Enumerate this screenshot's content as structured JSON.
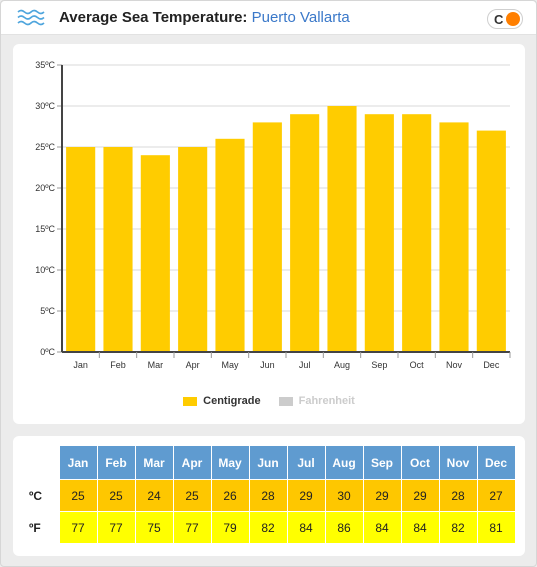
{
  "header": {
    "title": "Average Sea Temperature:",
    "location": "Puerto Vallarta",
    "toggle_label": "C"
  },
  "legend": {
    "centigrade": "Centigrade",
    "fahrenheit": "Fahrenheit"
  },
  "colors": {
    "bar": "#ffcc00",
    "legend_inactive": "#cccccc",
    "header_cell": "#5f9bd0",
    "celsius_row": "#fec700",
    "fahrenheit_row": "#ffff00",
    "toggle_knob": "#ff7f00"
  },
  "chart_data": {
    "type": "bar",
    "categories": [
      "Jan",
      "Feb",
      "Mar",
      "Apr",
      "May",
      "Jun",
      "Jul",
      "Aug",
      "Sep",
      "Oct",
      "Nov",
      "Dec"
    ],
    "series": [
      {
        "name": "Centigrade",
        "values": [
          25,
          25,
          24,
          25,
          26,
          28,
          29,
          30,
          29,
          29,
          28,
          27
        ]
      }
    ],
    "ylim": [
      0,
      35
    ],
    "yticks": [
      "0ºC",
      "5ºC",
      "10ºC",
      "15ºC",
      "20ºC",
      "25ºC",
      "30ºC",
      "35ºC"
    ],
    "grid": true
  },
  "table": {
    "celsius_label": "ºC",
    "fahrenheit_label": "ºF",
    "months": [
      "Jan",
      "Feb",
      "Mar",
      "Apr",
      "May",
      "Jun",
      "Jul",
      "Aug",
      "Sep",
      "Oct",
      "Nov",
      "Dec"
    ],
    "celsius": [
      "25",
      "25",
      "24",
      "25",
      "26",
      "28",
      "29",
      "30",
      "29",
      "29",
      "28",
      "27"
    ],
    "fahrenheit": [
      "77",
      "77",
      "75",
      "77",
      "79",
      "82",
      "84",
      "86",
      "84",
      "84",
      "82",
      "81"
    ]
  }
}
